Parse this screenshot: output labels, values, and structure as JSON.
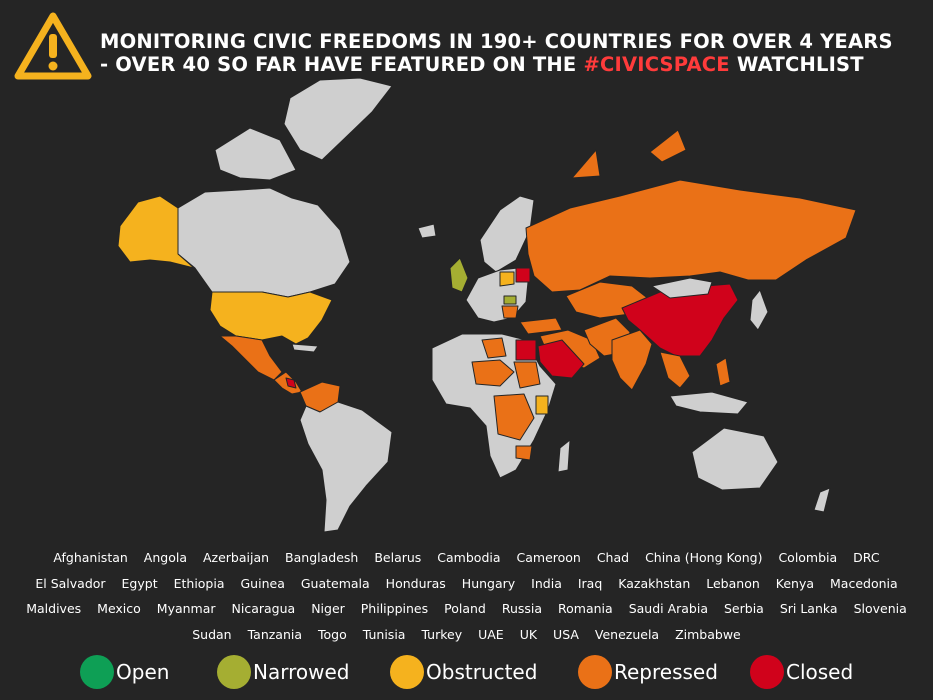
{
  "title": {
    "line1": "MONITORING CIVIC FREEDOMS IN 190+ COUNTRIES FOR OVER 4 YEARS",
    "line2_pre": "-  OVER 40 SO FAR HAVE FEATURED ON THE ",
    "line2_hash": "#CIVICSPACE",
    "line2_post": " WATCHLIST"
  },
  "icon": "warning-triangle-icon",
  "colors": {
    "open": "#0e9f55",
    "narrowed": "#a5ae32",
    "obstructed": "#f5b21e",
    "repressed": "#ea7117",
    "closed": "#d0021b",
    "no_data": "#cfcfcf",
    "background": "#252525",
    "accent_hash": "#ff3b3b",
    "icon": "#f5b21e"
  },
  "countries": {
    "row1": [
      "Afghanistan",
      "Angola",
      "Azerbaijan",
      "Bangladesh",
      "Belarus",
      "Cambodia",
      "Cameroon",
      "Chad",
      "China (Hong Kong)",
      "Colombia",
      "DRC"
    ],
    "row2": [
      "El Salvador",
      "Egypt",
      "Ethiopia",
      "Guinea",
      "Guatemala",
      "Honduras",
      "Hungary",
      "India",
      "Iraq",
      "Kazakhstan",
      "Lebanon",
      "Kenya",
      "Macedonia"
    ],
    "row3": [
      "Maldives",
      "Mexico",
      "Myanmar",
      "Nicaragua",
      "Niger",
      "Philippines",
      "Poland",
      "Russia",
      "Romania",
      "Saudi Arabia",
      "Serbia",
      "Sri Lanka",
      "Slovenia"
    ],
    "row4": [
      "Sudan",
      "Tanzania",
      "Togo",
      "Tunisia",
      "Turkey",
      "UAE",
      "UK",
      "USA",
      "Venezuela",
      "Zimbabwe"
    ]
  },
  "legend": [
    {
      "label": "Open",
      "color": "#0e9f55"
    },
    {
      "label": "Narrowed",
      "color": "#a5ae32"
    },
    {
      "label": "Obstructed",
      "color": "#f5b21e"
    },
    {
      "label": "Repressed",
      "color": "#ea7117"
    },
    {
      "label": "Closed",
      "color": "#d0021b"
    }
  ]
}
